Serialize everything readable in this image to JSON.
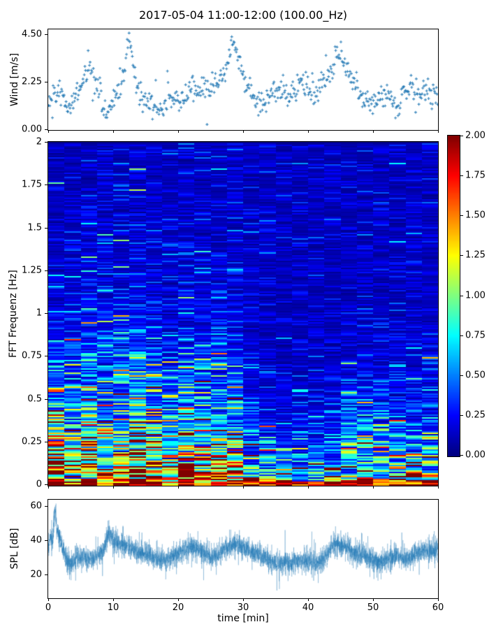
{
  "title": "2017-05-04 11:00-12:00 (100.00_Hz)",
  "colors": {
    "accent": "#1f77b4",
    "axis": "#000000",
    "background": "#ffffff"
  },
  "chart_data": [
    {
      "type": "scatter",
      "name": "wind",
      "ylabel": "Wind [m/s]",
      "xlim": [
        0,
        60
      ],
      "ylim": [
        0,
        4.73
      ],
      "yticks": [
        {
          "value": 0.0,
          "label": "0.00"
        },
        {
          "value": 2.25,
          "label": "2.25"
        },
        {
          "value": 4.5,
          "label": "4.50"
        }
      ],
      "xtick_values": [
        0,
        10,
        20,
        30,
        40,
        50,
        60
      ],
      "marker": "plus",
      "n_points": 600,
      "noise_sd": 0.3,
      "seed": 42,
      "trend_t": [
        0,
        1,
        2,
        3,
        4,
        5,
        6,
        6.5,
        7,
        7.5,
        8,
        8.5,
        9,
        10,
        11,
        12,
        12.5,
        13,
        13.5,
        14,
        15,
        16,
        17,
        18,
        19,
        20,
        21,
        22,
        23,
        24,
        25,
        26,
        27,
        27.5,
        28,
        28.5,
        29,
        29.5,
        30,
        31,
        32,
        33,
        34,
        35,
        36,
        37,
        38,
        39,
        40,
        41,
        42,
        43,
        44,
        44.5,
        45,
        46,
        47,
        48,
        49,
        50,
        51,
        52,
        53,
        54,
        55,
        56,
        57,
        58,
        59,
        60
      ],
      "trend_v": [
        1.4,
        1.6,
        1.7,
        0.9,
        1.6,
        2.2,
        2.8,
        3.1,
        2.6,
        2.2,
        1.8,
        0.9,
        0.6,
        1.5,
        1.9,
        3.2,
        4.4,
        3.3,
        2.1,
        1.7,
        1.5,
        1.2,
        0.9,
        1.2,
        1.4,
        1.3,
        1.6,
        2.0,
        1.9,
        2.1,
        1.7,
        2.2,
        2.7,
        3.0,
        3.5,
        4.3,
        3.7,
        2.9,
        2.3,
        1.7,
        1.4,
        1.1,
        1.5,
        1.8,
        2.1,
        1.6,
        1.9,
        2.3,
        1.8,
        1.5,
        2.2,
        2.6,
        3.1,
        3.7,
        3.3,
        2.6,
        2.2,
        1.5,
        1.2,
        1.0,
        1.5,
        1.8,
        1.3,
        1.1,
        1.7,
        2.1,
        1.6,
        1.9,
        1.5,
        1.7
      ]
    },
    {
      "type": "heatmap",
      "name": "fft-spectrogram",
      "ylabel": "FFT Frequenz [Hz]",
      "xlim": [
        0,
        60
      ],
      "ylim": [
        0,
        2
      ],
      "vmin": 0,
      "vmax": 2,
      "colormap": "jet",
      "yticks": [
        {
          "value": 0,
          "label": "0"
        },
        {
          "value": 0.25,
          "label": "0.25"
        },
        {
          "value": 0.5,
          "label": "0.5"
        },
        {
          "value": 0.75,
          "label": "0.75"
        },
        {
          "value": 1,
          "label": "1"
        },
        {
          "value": 1.25,
          "label": "1.25"
        },
        {
          "value": 1.5,
          "label": "1.5"
        },
        {
          "value": 1.75,
          "label": "1.75"
        },
        {
          "value": 2,
          "label": "2"
        }
      ],
      "xtick_values": [
        0,
        10,
        20,
        30,
        40,
        50,
        60
      ],
      "n_time_bins": 24,
      "n_freq_bins": 245,
      "seed": 7,
      "envelope": {
        "floor": 0.12,
        "noise_lognorm_sd": 0.6,
        "col_jitter_sd": 0.15,
        "bottom_band_freq": 0.025,
        "bottom_band_value": 1.9,
        "segments": [
          {
            "t0": 0,
            "t1": 5,
            "amp": 1.3,
            "scale": 0.35
          },
          {
            "t0": 5,
            "t1": 17.5,
            "amp": 1.6,
            "scale": 0.4
          },
          {
            "t0": 17.5,
            "t1": 30,
            "amp": 1.5,
            "scale": 0.38
          },
          {
            "t0": 30,
            "t1": 33,
            "amp": 1.0,
            "scale": 0.25
          },
          {
            "t0": 33,
            "t1": 45,
            "amp": 0.75,
            "scale": 0.2
          },
          {
            "t0": 45,
            "t1": 60,
            "amp": 1.05,
            "scale": 0.27
          }
        ]
      },
      "colorbar": {
        "ticks": [
          {
            "value": 0.0,
            "label": "0.00"
          },
          {
            "value": 0.25,
            "label": "0.25"
          },
          {
            "value": 0.5,
            "label": "0.50"
          },
          {
            "value": 0.75,
            "label": "0.75"
          },
          {
            "value": 1.0,
            "label": "1.00"
          },
          {
            "value": 1.25,
            "label": "1.25"
          },
          {
            "value": 1.5,
            "label": "1.50"
          },
          {
            "value": 1.75,
            "label": "1.75"
          },
          {
            "value": 2.0,
            "label": "2.00"
          }
        ]
      }
    },
    {
      "type": "line",
      "name": "spl",
      "ylabel": "SPL [dB]",
      "xlabel": "time [min]",
      "xlim": [
        0,
        60
      ],
      "ylim": [
        6.7,
        63.6
      ],
      "yticks": [
        {
          "value": 20,
          "label": "20"
        },
        {
          "value": 40,
          "label": "40"
        },
        {
          "value": 60,
          "label": "60"
        }
      ],
      "xticks": [
        {
          "value": 0,
          "label": "0"
        },
        {
          "value": 10,
          "label": "10"
        },
        {
          "value": 20,
          "label": "20"
        },
        {
          "value": 30,
          "label": "30"
        },
        {
          "value": 40,
          "label": "40"
        },
        {
          "value": 50,
          "label": "50"
        },
        {
          "value": 60,
          "label": "60"
        }
      ],
      "seed": 99,
      "noise_sd": 2.5,
      "n_points": 2800,
      "trend_t": [
        0,
        0.3,
        0.7,
        1,
        1.3,
        1.7,
        2,
        2.5,
        3,
        3.5,
        4,
        4.5,
        5,
        5.5,
        6,
        6.5,
        7,
        7.5,
        8,
        8.5,
        9,
        9.5,
        10,
        11,
        12,
        13,
        14,
        15,
        16,
        17,
        18,
        19,
        20,
        21,
        22,
        23,
        24,
        25,
        26,
        27,
        28,
        29,
        30,
        31,
        32,
        33,
        34,
        35,
        36,
        37,
        38,
        39,
        40,
        41,
        42,
        43,
        44,
        45,
        46,
        47,
        48,
        49,
        50,
        51,
        52,
        53,
        54,
        55,
        56,
        57,
        58,
        59,
        60
      ],
      "trend_v": [
        34,
        44,
        38,
        58,
        48,
        42,
        38,
        33,
        27,
        26,
        28,
        31,
        29,
        33,
        28,
        30,
        29,
        31,
        32,
        34,
        42,
        43,
        40,
        38,
        37,
        35,
        33,
        32,
        30,
        29,
        28,
        30,
        32,
        34,
        36,
        35,
        33,
        30,
        31,
        35,
        37,
        38,
        36,
        34,
        33,
        30,
        28,
        27,
        26,
        27,
        27,
        28,
        28,
        26,
        28,
        32,
        38,
        37,
        36,
        33,
        31,
        30,
        28,
        27,
        29,
        31,
        30,
        29,
        31,
        33,
        34,
        33,
        35
      ]
    }
  ]
}
